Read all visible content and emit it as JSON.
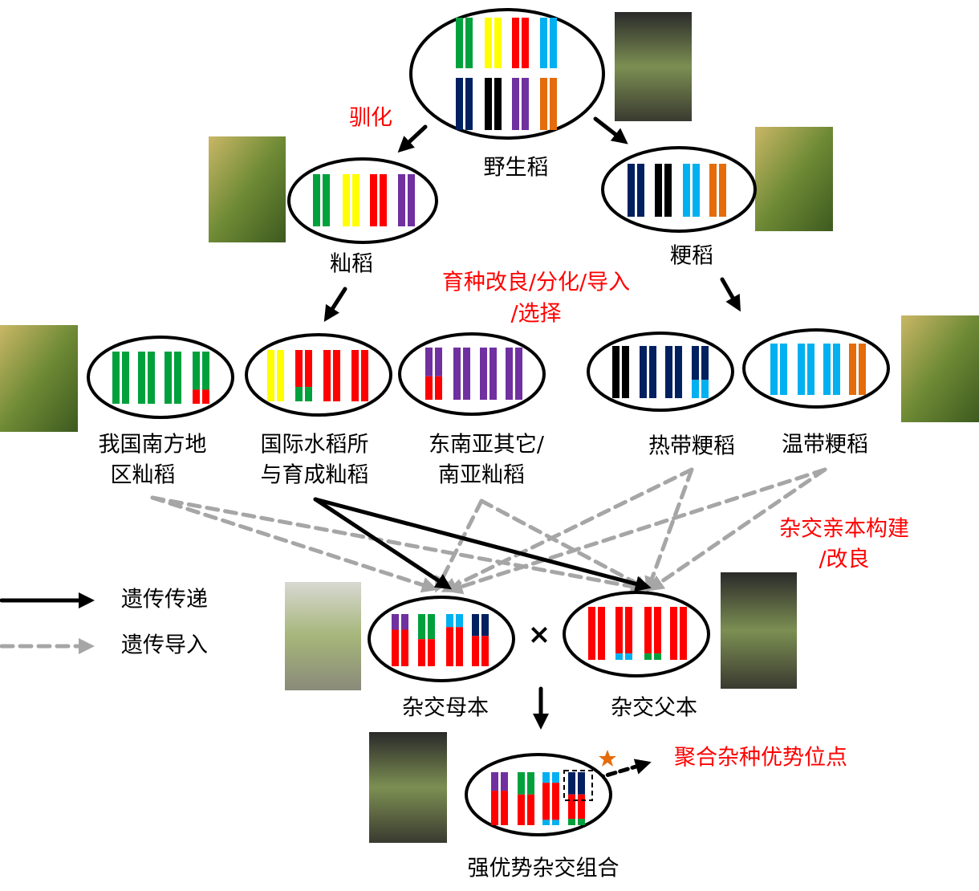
{
  "annotations": {
    "domestication": "驯化",
    "breeding": [
      "育种改良/分化/导入",
      "/选择"
    ],
    "parent_construction": [
      "杂交亲本构建",
      "/改良"
    ],
    "heterosis_loci": "聚合杂种优势位点"
  },
  "nodes": {
    "wild": "野生稻",
    "indica": "籼稻",
    "japonica": "粳稻",
    "south_china_indica": [
      "我国南方地",
      "区籼稻"
    ],
    "irri_indica": [
      "国际水稻所",
      "与育成籼稻"
    ],
    "sea_indica": [
      "东南亚其它/",
      "南亚籼稻"
    ],
    "tropical_japonica": "热带粳稻",
    "temperate_japonica": "温带粳稻",
    "female_parent": "杂交母本",
    "male_parent": "杂交父本",
    "hybrid": "强优势杂交组合"
  },
  "legend": {
    "transmission": "遗传传递",
    "introgression": "遗传导入"
  },
  "cross_symbol": "×"
}
